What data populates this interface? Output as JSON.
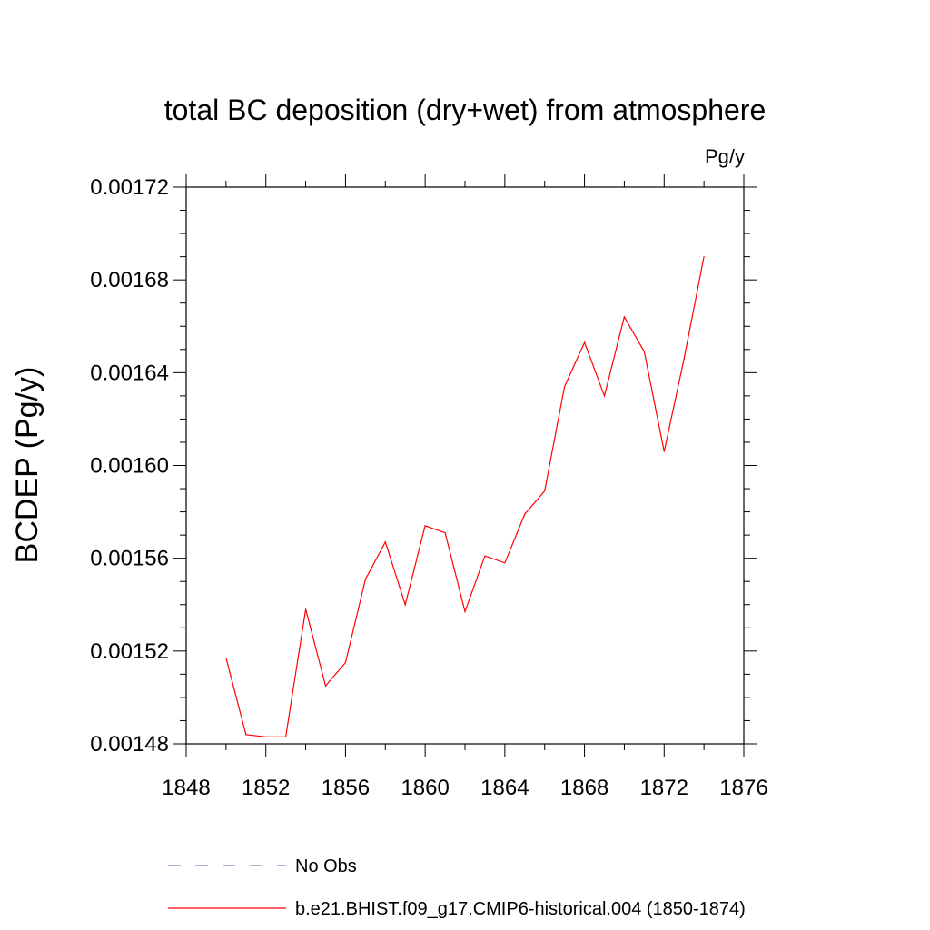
{
  "chart_data": {
    "type": "line",
    "title": "total BC deposition (dry+wet) from atmosphere",
    "units_label": "Pg/y",
    "ylabel": "BCDEP  (Pg/y)",
    "xlabel": "",
    "xlim": [
      1848,
      1876
    ],
    "ylim": [
      0.00148,
      0.00172
    ],
    "x_ticks": [
      1848,
      1852,
      1856,
      1860,
      1864,
      1868,
      1872,
      1876
    ],
    "x_tick_labels": [
      "1848",
      "1852",
      "1856",
      "1860",
      "1864",
      "1868",
      "1872",
      "1876"
    ],
    "y_ticks": [
      0.00148,
      0.00152,
      0.00156,
      0.0016,
      0.00164,
      0.00168,
      0.00172
    ],
    "y_tick_labels": [
      "0.00148",
      "0.00152",
      "0.00156",
      "0.00160",
      "0.00164",
      "0.00168",
      "0.00172"
    ],
    "grid": false,
    "x": [
      1850,
      1851,
      1852,
      1853,
      1854,
      1855,
      1856,
      1857,
      1858,
      1859,
      1860,
      1861,
      1862,
      1863,
      1864,
      1865,
      1866,
      1867,
      1868,
      1869,
      1870,
      1871,
      1872,
      1873,
      1874
    ],
    "series": [
      {
        "name": "b.e21.BHIST.f09_g17.CMIP6-historical.004 (1850-1874)",
        "color": "#ff0000",
        "values": [
          0.001517,
          0.001484,
          0.001483,
          0.001483,
          0.001538,
          0.001505,
          0.001515,
          0.001551,
          0.001567,
          0.00154,
          0.001574,
          0.001571,
          0.001537,
          0.001561,
          0.001558,
          0.001579,
          0.001589,
          0.001634,
          0.001653,
          0.00163,
          0.001664,
          0.001649,
          0.001606,
          0.001646,
          0.00169
        ]
      }
    ],
    "legend": [
      {
        "label": "No Obs",
        "color": "#8080c0",
        "style": "dashed"
      },
      {
        "label": "b.e21.BHIST.f09_g17.CMIP6-historical.004 (1850-1874)",
        "color": "#ff0000",
        "style": "solid"
      }
    ],
    "legend_position": "bottom"
  }
}
